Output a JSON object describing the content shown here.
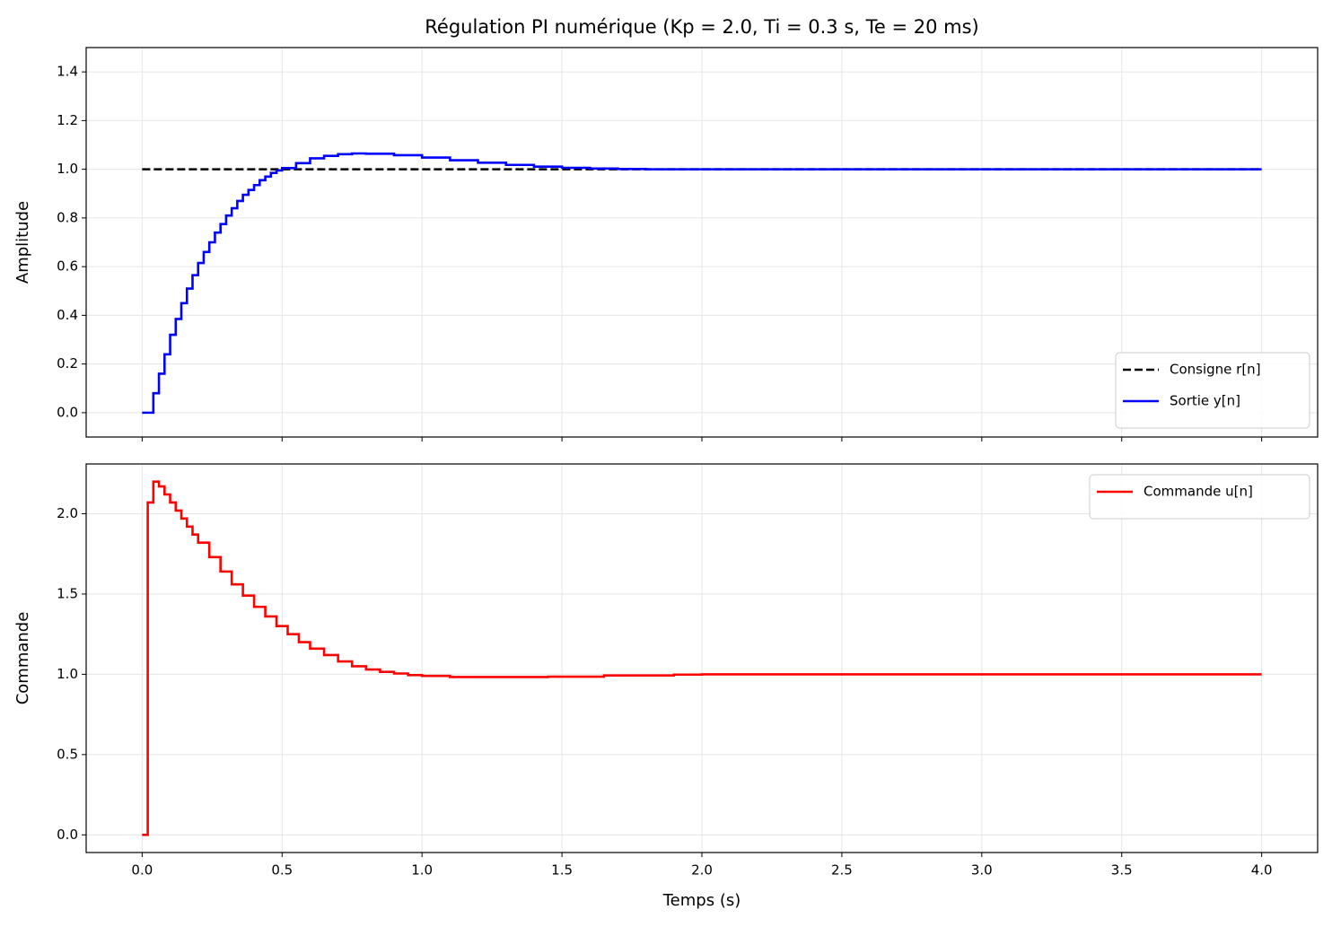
{
  "chart_data": [
    {
      "type": "line",
      "step": "post",
      "title": "Régulation PI numérique (Kp = 2.0, Ti = 0.3 s, Te = 20 ms)",
      "ylabel": "Amplitude",
      "xlim": [
        -0.2,
        4.2
      ],
      "ylim": [
        -0.1,
        1.5
      ],
      "xticks": [
        {
          "value": 0,
          "label": "0.0"
        },
        0.5,
        {
          "value": 1,
          "label": "1.0"
        },
        1.5,
        {
          "value": 2,
          "label": "2.0"
        },
        2.5,
        {
          "value": 3,
          "label": "3.0"
        },
        3.5,
        {
          "value": 4,
          "label": "4.0"
        }
      ],
      "yticks": [
        {
          "value": 0,
          "label": "0.0"
        },
        0.2,
        0.4,
        0.6,
        0.8,
        {
          "value": 1,
          "label": "1.0"
        },
        1.2,
        1.4
      ],
      "grid": true,
      "legend": "lower right",
      "series": [
        {
          "name": "Consigne r[n]",
          "color": "#000000",
          "linestyle": "dashed",
          "x": [
            0,
            4
          ],
          "values": [
            1,
            1
          ]
        },
        {
          "name": "Sortie y[n]",
          "color": "#0000ff",
          "linestyle": "solid",
          "x": [
            0,
            0.02,
            0.04,
            0.06,
            0.08,
            0.1,
            0.12,
            0.14,
            0.16,
            0.18,
            0.2,
            0.22,
            0.24,
            0.26,
            0.28,
            0.3,
            0.32,
            0.34,
            0.36,
            0.38,
            0.4,
            0.42,
            0.44,
            0.46,
            0.48,
            0.5,
            0.55,
            0.6,
            0.65,
            0.7,
            0.75,
            0.8,
            0.9,
            1.0,
            1.1,
            1.2,
            1.3,
            1.4,
            1.5,
            1.6,
            1.7,
            1.8,
            2.0,
            4.0
          ],
          "values": [
            0,
            0,
            0.08,
            0.16,
            0.24,
            0.32,
            0.385,
            0.45,
            0.51,
            0.565,
            0.615,
            0.66,
            0.7,
            0.74,
            0.775,
            0.81,
            0.84,
            0.87,
            0.895,
            0.915,
            0.935,
            0.955,
            0.97,
            0.985,
            0.995,
            1.005,
            1.025,
            1.045,
            1.055,
            1.062,
            1.065,
            1.064,
            1.058,
            1.048,
            1.037,
            1.027,
            1.018,
            1.011,
            1.006,
            1.003,
            1.001,
            1.0,
            1.0,
            1.0
          ]
        }
      ]
    },
    {
      "type": "line",
      "step": "post",
      "xlabel": "Temps (s)",
      "ylabel": "Commande",
      "xlim": [
        -0.2,
        4.2
      ],
      "ylim": [
        -0.11,
        2.31
      ],
      "xticks": [
        {
          "value": 0,
          "label": "0.0"
        },
        0.5,
        {
          "value": 1,
          "label": "1.0"
        },
        1.5,
        {
          "value": 2,
          "label": "2.0"
        },
        2.5,
        {
          "value": 3,
          "label": "3.0"
        },
        3.5,
        {
          "value": 4,
          "label": "4.0"
        }
      ],
      "yticks": [
        {
          "value": 0,
          "label": "0.0"
        },
        0.5,
        {
          "value": 1,
          "label": "1.0"
        },
        1.5,
        {
          "value": 2,
          "label": "2.0"
        }
      ],
      "grid": true,
      "legend": "upper right",
      "series": [
        {
          "name": "Commande u[n]",
          "color": "#ff0000",
          "linestyle": "solid",
          "x": [
            0,
            0.02,
            0.04,
            0.06,
            0.08,
            0.1,
            0.12,
            0.14,
            0.16,
            0.18,
            0.2,
            0.24,
            0.28,
            0.32,
            0.36,
            0.4,
            0.44,
            0.48,
            0.52,
            0.56,
            0.6,
            0.65,
            0.7,
            0.75,
            0.8,
            0.85,
            0.9,
            0.95,
            1.0,
            1.1,
            1.45,
            1.65,
            1.9,
            2.0,
            4.0
          ],
          "values": [
            0,
            2.07,
            2.2,
            2.17,
            2.12,
            2.07,
            2.02,
            1.97,
            1.92,
            1.87,
            1.82,
            1.73,
            1.64,
            1.56,
            1.49,
            1.42,
            1.36,
            1.3,
            1.25,
            1.2,
            1.16,
            1.12,
            1.08,
            1.05,
            1.03,
            1.015,
            1.005,
            0.995,
            0.99,
            0.983,
            0.985,
            0.993,
            0.998,
            1.0,
            1.0
          ]
        }
      ]
    }
  ]
}
